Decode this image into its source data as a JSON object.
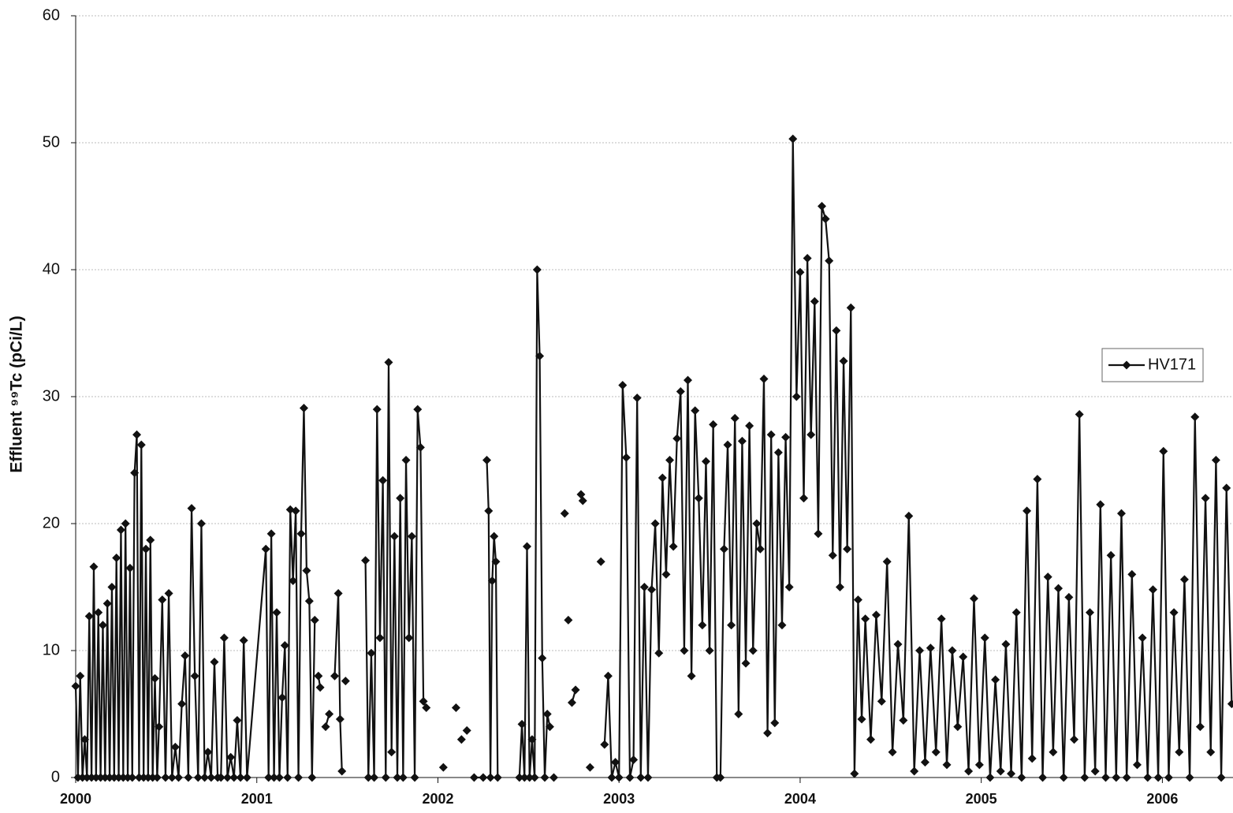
{
  "chart_data": {
    "type": "line",
    "y_label": "Effluent ⁹⁹Tc (pCi/L)",
    "x": [
      2000,
      2000.0125,
      2000.025,
      2000.0375,
      2000.05,
      2000.0625,
      2000.075,
      2000.0875,
      2000.1,
      2000.1125,
      2000.125,
      2000.1375,
      2000.15,
      2000.1625,
      2000.175,
      2000.1875,
      2000.2,
      2000.2125,
      2000.225,
      2000.2375,
      2000.25,
      2000.2625,
      2000.275,
      2000.2875,
      2000.3,
      2000.3125,
      2000.325,
      2000.3375,
      2000.35,
      2000.3625,
      2000.375,
      2000.3875,
      2000.4,
      2000.4125,
      2000.425,
      2000.4375,
      2000.45,
      2000.46,
      2000.478,
      2000.496,
      2000.514,
      2000.532,
      2000.55,
      2000.568,
      2000.586,
      2000.604,
      2000.622,
      2000.64,
      2000.658,
      2000.676,
      2000.694,
      2000.712,
      2000.73,
      2000.748,
      2000.766,
      2000.784,
      2000.802,
      2000.82,
      2000.838,
      2000.856,
      2000.874,
      2000.892,
      2000.91,
      2000.928,
      2000.946,
      2001.05,
      2001.065,
      2001.08,
      2001.095,
      2001.11,
      2001.125,
      2001.14,
      2001.155,
      2001.17,
      2001.185,
      2001.2,
      2001.215,
      2001.23,
      2001.245,
      2001.26,
      2001.275,
      2001.29,
      2001.305,
      2001.32,
      2001.33,
      2001.34,
      2001.35,
      2001.36,
      2001.38,
      2001.4,
      2001.41,
      2001.43,
      2001.45,
      2001.46,
      2001.47,
      2001.48,
      2001.49,
      2001.5,
      2001.6,
      2001.616,
      2001.632,
      2001.648,
      2001.664,
      2001.68,
      2001.696,
      2001.712,
      2001.728,
      2001.744,
      2001.76,
      2001.776,
      2001.792,
      2001.808,
      2001.824,
      2001.84,
      2001.856,
      2001.872,
      2001.888,
      2001.904,
      2001.92,
      2001.936,
      2001.95,
      2002.03,
      2002.06,
      2002.1,
      2002.11,
      2002.13,
      2002.14,
      2002.16,
      2002.17,
      2002.2,
      2002.25,
      2002.26,
      2002.27,
      2002.28,
      2002.29,
      2002.3,
      2002.31,
      2002.32,
      2002.33,
      2002.34,
      2002.45,
      2002.464,
      2002.478,
      2002.492,
      2002.506,
      2002.52,
      2002.534,
      2002.548,
      2002.562,
      2002.576,
      2002.59,
      2002.604,
      2002.618,
      2002.63,
      2002.64,
      2002.65,
      2002.7,
      2002.71,
      2002.72,
      2002.73,
      2002.74,
      2002.76,
      2002.77,
      2002.79,
      2002.8,
      2002.81,
      2002.84,
      2002.85,
      2002.9,
      2002.91,
      2002.92,
      2002.94,
      2002.96,
      2002.98,
      2003,
      2003.02,
      2003.04,
      2003.06,
      2003.08,
      2003.1,
      2003.12,
      2003.14,
      2003.16,
      2003.18,
      2003.2,
      2003.22,
      2003.24,
      2003.26,
      2003.28,
      2003.3,
      2003.32,
      2003.34,
      2003.36,
      2003.38,
      2003.4,
      2003.42,
      2003.44,
      2003.46,
      2003.48,
      2003.5,
      2003.52,
      2003.54,
      2003.56,
      2003.58,
      2003.6,
      2003.62,
      2003.64,
      2003.66,
      2003.68,
      2003.7,
      2003.72,
      2003.74,
      2003.76,
      2003.78,
      2003.8,
      2003.82,
      2003.84,
      2003.86,
      2003.88,
      2003.9,
      2003.92,
      2003.94,
      2003.96,
      2003.98,
      2004,
      2004.02,
      2004.04,
      2004.06,
      2004.08,
      2004.1,
      2004.12,
      2004.14,
      2004.16,
      2004.18,
      2004.2,
      2004.22,
      2004.24,
      2004.26,
      2004.28,
      2004.3,
      2004.32,
      2004.34,
      2004.36,
      2004.39,
      2004.42,
      2004.45,
      2004.48,
      2004.51,
      2004.54,
      2004.57,
      2004.6,
      2004.63,
      2004.66,
      2004.69,
      2004.72,
      2004.75,
      2004.78,
      2004.81,
      2004.84,
      2004.87,
      2004.9,
      2004.93,
      2004.96,
      2004.99,
      2005.02,
      2005.049,
      2005.078,
      2005.107,
      2005.136,
      2005.165,
      2005.194,
      2005.223,
      2005.252,
      2005.281,
      2005.31,
      2005.339,
      2005.368,
      2005.397,
      2005.426,
      2005.455,
      2005.484,
      2005.513,
      2005.542,
      2005.571,
      2005.6,
      2005.629,
      2005.658,
      2005.687,
      2005.716,
      2005.745,
      2005.774,
      2005.803,
      2005.832,
      2005.861,
      2005.89,
      2005.919,
      2005.948,
      2005.977,
      2006.006,
      2006.035,
      2006.064,
      2006.093,
      2006.122,
      2006.151,
      2006.18,
      2006.209,
      2006.238,
      2006.267,
      2006.296,
      2006.325,
      2006.354,
      2006.383
    ],
    "series": [
      {
        "name": "HV171",
        "color": "#111111",
        "values": [
          7.2,
          0,
          8,
          0,
          3,
          0,
          12.7,
          0,
          16.6,
          0,
          13,
          0,
          12,
          0,
          13.7,
          0,
          15,
          0,
          17.3,
          0,
          19.5,
          0,
          20,
          0,
          16.5,
          0,
          24,
          27,
          0,
          26.2,
          0,
          18,
          0,
          18.7,
          0,
          7.8,
          0,
          4,
          14,
          0,
          14.5,
          0,
          2.4,
          0,
          5.8,
          9.6,
          0,
          21.2,
          8,
          0,
          20,
          0,
          2,
          0,
          9.1,
          0,
          0,
          11,
          0,
          1.6,
          0,
          4.5,
          0,
          10.8,
          0,
          18,
          0,
          19.2,
          0,
          13,
          0,
          6.3,
          10.4,
          0,
          21.1,
          15.5,
          21,
          0,
          19.2,
          29.1,
          16.3,
          13.9,
          0,
          12.4,
          null,
          8,
          7.1,
          null,
          4,
          5,
          null,
          8,
          14.5,
          4.6,
          0.5,
          null,
          7.6,
          null,
          17.1,
          0,
          9.8,
          0,
          29,
          11,
          23.4,
          0,
          32.7,
          2,
          19,
          0,
          22,
          0,
          25,
          11,
          19,
          0,
          29,
          26,
          6,
          5.5,
          null,
          0.8,
          null,
          5.5,
          null,
          3,
          null,
          3.7,
          null,
          0,
          0,
          null,
          25,
          21,
          0,
          15.5,
          19,
          17,
          0,
          null,
          0,
          4.2,
          0,
          18.2,
          0,
          3,
          0,
          40,
          33.2,
          9.4,
          0,
          5,
          4,
          null,
          0,
          null,
          20.8,
          null,
          12.4,
          null,
          5.9,
          6.9,
          null,
          22.3,
          21.8,
          null,
          0.8,
          null,
          17,
          null,
          2.6,
          8,
          0,
          1.2,
          0,
          30.9,
          25.2,
          0,
          1.4,
          29.9,
          0,
          15,
          0,
          14.8,
          20,
          9.8,
          23.6,
          16,
          25,
          18.2,
          26.7,
          30.4,
          10,
          31.3,
          8,
          28.9,
          22,
          12,
          24.9,
          10,
          27.8,
          0,
          0,
          18,
          26.2,
          12,
          28.3,
          5,
          26.5,
          9,
          27.7,
          10,
          20,
          18,
          31.4,
          3.5,
          27,
          4.3,
          25.6,
          12,
          26.8,
          15,
          50.3,
          30,
          39.8,
          22,
          40.9,
          27,
          37.5,
          19.2,
          45,
          44,
          40.7,
          17.5,
          35.2,
          15,
          32.8,
          18,
          37,
          0.3,
          14,
          4.6,
          12.5,
          3,
          12.8,
          6,
          17,
          2,
          10.5,
          4.5,
          20.6,
          0.5,
          10,
          1.2,
          10.2,
          2,
          12.5,
          1,
          10,
          4,
          9.5,
          0.5,
          14.1,
          1,
          11,
          0,
          7.7,
          0.5,
          10.5,
          0.3,
          13,
          0,
          21,
          1.5,
          23.5,
          0,
          15.8,
          2,
          14.9,
          0,
          14.2,
          3,
          28.6,
          0,
          13,
          0.5,
          21.5,
          0,
          17.5,
          0,
          20.8,
          0,
          16,
          1,
          11,
          0,
          14.8,
          0,
          25.7,
          0,
          13,
          2,
          15.6,
          0,
          28.4,
          4,
          22,
          2,
          25,
          0,
          22.8,
          5.8
        ]
      }
    ],
    "xlim": [
      2000,
      2006.39
    ],
    "xticks": [
      2000,
      2001,
      2002,
      2003,
      2004,
      2005,
      2006
    ],
    "ylim": [
      0,
      60
    ],
    "yticks": [
      0,
      10,
      20,
      30,
      40,
      50,
      60
    ],
    "grid": true,
    "legend": "right"
  }
}
